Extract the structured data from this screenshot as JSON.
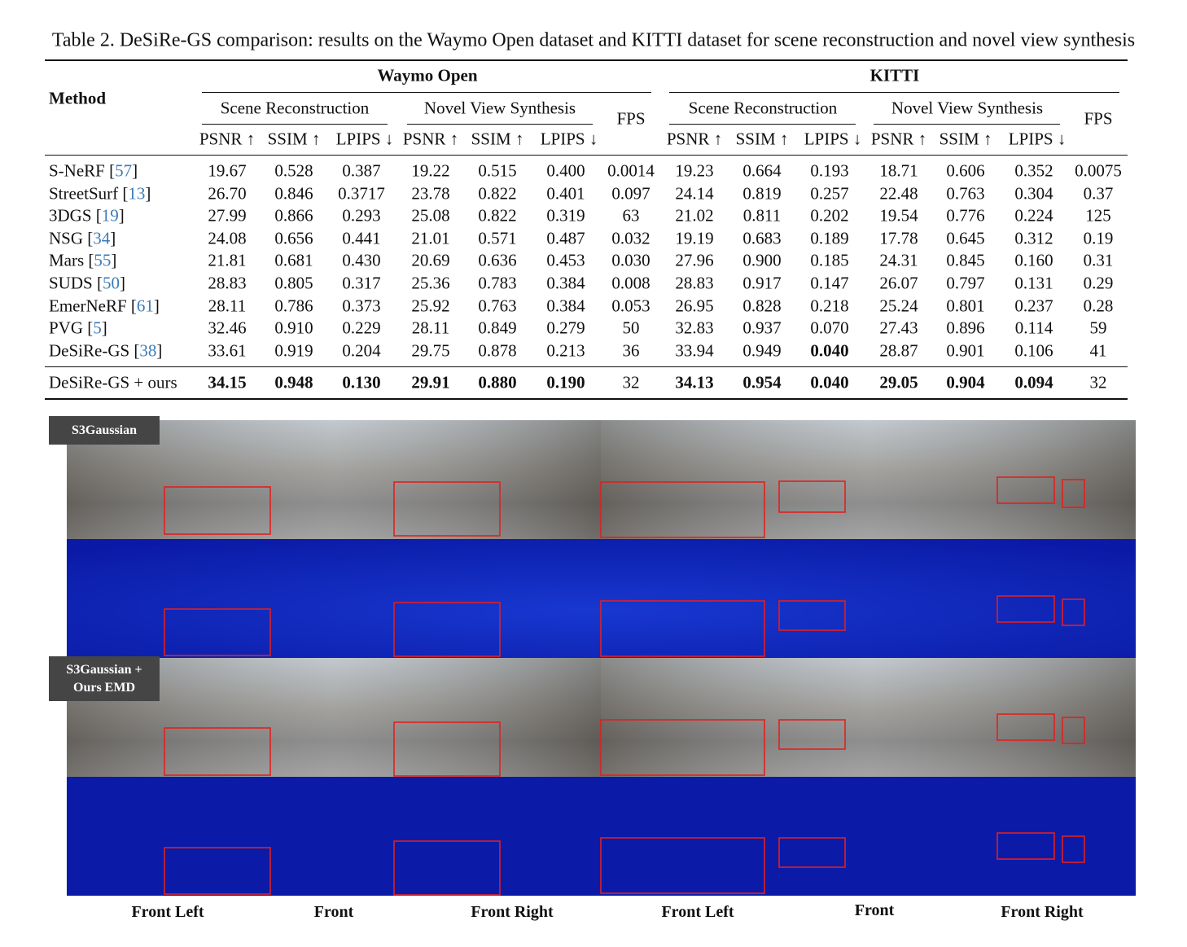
{
  "caption": "Table 2. DeSiRe-GS comparison: results on the Waymo Open dataset and KITTI dataset for scene reconstruction and novel view synthesis",
  "table": {
    "method_header": "Method",
    "groups": [
      {
        "name": "Waymo Open",
        "subgroups": [
          "Scene Reconstruction",
          "Novel View Synthesis"
        ],
        "fps": "FPS",
        "metrics": [
          "PSNR ↑",
          "SSIM ↑",
          "LPIPS ↓",
          "PSNR ↑",
          "SSIM ↑",
          "LPIPS ↓"
        ]
      },
      {
        "name": "KITTI",
        "subgroups": [
          "Scene Reconstruction",
          "Novel View Synthesis"
        ],
        "fps": "FPS",
        "metrics": [
          "PSNR ↑",
          "SSIM ↑",
          "LPIPS ↓",
          "PSNR ↑",
          "SSIM ↑",
          "LPIPS ↓"
        ]
      }
    ],
    "rows": [
      {
        "method": "S-NeRF [57]",
        "values": [
          "19.67",
          "0.528",
          "0.387",
          "19.22",
          "0.515",
          "0.400",
          "0.0014",
          "19.23",
          "0.664",
          "0.193",
          "18.71",
          "0.606",
          "0.352",
          "0.0075"
        ]
      },
      {
        "method": "StreetSurf [13]",
        "values": [
          "26.70",
          "0.846",
          "0.3717",
          "23.78",
          "0.822",
          "0.401",
          "0.097",
          "24.14",
          "0.819",
          "0.257",
          "22.48",
          "0.763",
          "0.304",
          "0.37"
        ]
      },
      {
        "method": "3DGS [19]",
        "values": [
          "27.99",
          "0.866",
          "0.293",
          "25.08",
          "0.822",
          "0.319",
          "63",
          "21.02",
          "0.811",
          "0.202",
          "19.54",
          "0.776",
          "0.224",
          "125"
        ]
      },
      {
        "method": "NSG [34]",
        "values": [
          "24.08",
          "0.656",
          "0.441",
          "21.01",
          "0.571",
          "0.487",
          "0.032",
          "19.19",
          "0.683",
          "0.189",
          "17.78",
          "0.645",
          "0.312",
          "0.19"
        ]
      },
      {
        "method": "Mars [55]",
        "values": [
          "21.81",
          "0.681",
          "0.430",
          "20.69",
          "0.636",
          "0.453",
          "0.030",
          "27.96",
          "0.900",
          "0.185",
          "24.31",
          "0.845",
          "0.160",
          "0.31"
        ]
      },
      {
        "method": "SUDS [50]",
        "values": [
          "28.83",
          "0.805",
          "0.317",
          "25.36",
          "0.783",
          "0.384",
          "0.008",
          "28.83",
          "0.917",
          "0.147",
          "26.07",
          "0.797",
          "0.131",
          "0.29"
        ]
      },
      {
        "method": "EmerNeRF [61]",
        "values": [
          "28.11",
          "0.786",
          "0.373",
          "25.92",
          "0.763",
          "0.384",
          "0.053",
          "26.95",
          "0.828",
          "0.218",
          "25.24",
          "0.801",
          "0.237",
          "0.28"
        ]
      },
      {
        "method": "PVG [5]",
        "values": [
          "32.46",
          "0.910",
          "0.229",
          "28.11",
          "0.849",
          "0.279",
          "50",
          "32.83",
          "0.937",
          "0.070",
          "27.43",
          "0.896",
          "0.114",
          "59"
        ]
      },
      {
        "method": "DeSiRe-GS [38]",
        "values": [
          "33.61",
          "0.919",
          "0.204",
          "29.75",
          "0.878",
          "0.213",
          "36",
          "33.94",
          "0.949",
          "0.040",
          "28.87",
          "0.901",
          "0.106",
          "41"
        ]
      },
      {
        "method": "DeSiRe-GS + ours",
        "values": [
          "34.15",
          "0.948",
          "0.130",
          "29.91",
          "0.880",
          "0.190",
          "32",
          "34.13",
          "0.954",
          "0.040",
          "29.05",
          "0.904",
          "0.094",
          "32"
        ]
      }
    ],
    "bold_cells": [
      [
        8,
        9
      ],
      [
        9,
        0
      ],
      [
        9,
        1
      ],
      [
        9,
        2
      ],
      [
        9,
        3
      ],
      [
        9,
        4
      ],
      [
        9,
        5
      ],
      [
        9,
        7
      ],
      [
        9,
        8
      ],
      [
        9,
        9
      ],
      [
        9,
        10
      ],
      [
        9,
        11
      ],
      [
        9,
        12
      ]
    ]
  },
  "figure": {
    "row_labels": [
      "S3Gaussian",
      "S3Gaussian +\nOurs EMD"
    ],
    "column_labels": [
      "Front Left",
      "Front",
      "Front Right",
      "Front Left",
      "Front",
      "Front Right"
    ]
  }
}
